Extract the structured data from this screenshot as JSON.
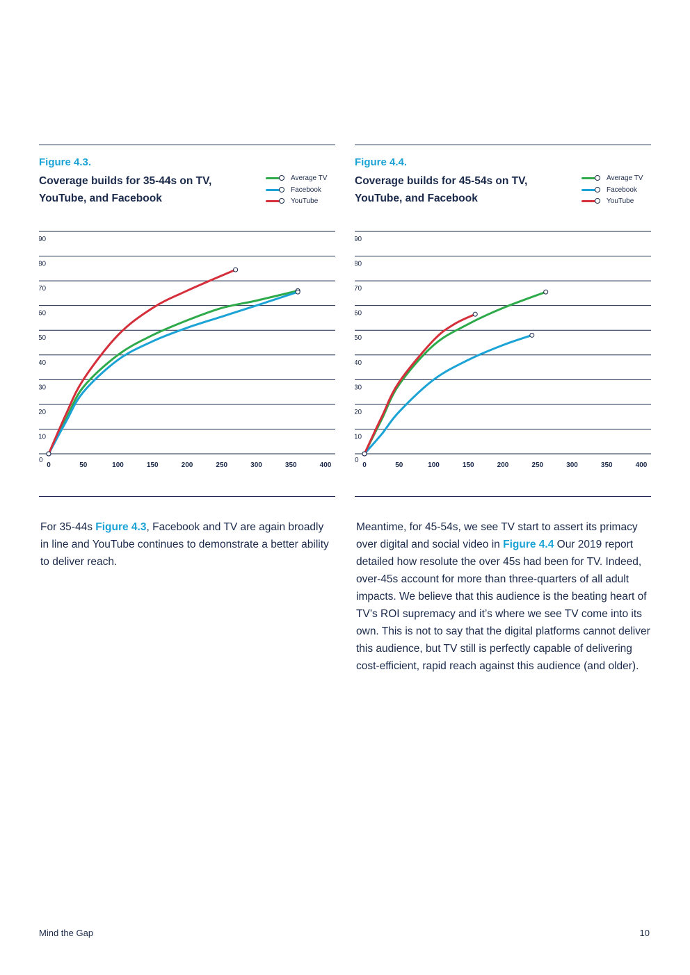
{
  "figures": [
    {
      "number": "Figure 4.3.",
      "title": "Coverage builds for 35-44s on TV, YouTube, and Facebook"
    },
    {
      "number": "Figure 4.4.",
      "title": "Coverage builds for 45-54s on TV, YouTube, and Facebook"
    }
  ],
  "colors": {
    "tv": "#2eaa4a",
    "facebook": "#1ba3d6",
    "youtube": "#d42f3a",
    "text": "#1b2a4a",
    "accent": "#1ba3d6"
  },
  "chart_data": [
    {
      "type": "line",
      "title": "Coverage builds for 35-44s on TV, YouTube, and Facebook",
      "xlabel": "",
      "ylabel": "",
      "xlim": [
        0,
        400
      ],
      "ylim": [
        0,
        90
      ],
      "xticks": [
        "0",
        "50",
        "100",
        "150",
        "200",
        "250",
        "300",
        "350",
        "400"
      ],
      "yticks": [
        "0",
        "10",
        "20",
        "30",
        "40",
        "50",
        "60",
        "70",
        "80",
        "90"
      ],
      "legend": [
        "Average TV",
        "Facebook",
        "YouTube"
      ],
      "legend_position": "top-right",
      "series": [
        {
          "name": "Average TV",
          "color": "#2eaa4a",
          "x": [
            0,
            25,
            50,
            100,
            150,
            200,
            250,
            300,
            360
          ],
          "y": [
            0,
            14,
            27,
            40,
            48,
            54,
            59,
            62,
            66
          ]
        },
        {
          "name": "Facebook",
          "color": "#1ba3d6",
          "x": [
            0,
            25,
            50,
            100,
            150,
            200,
            250,
            300,
            360
          ],
          "y": [
            0,
            13,
            25,
            38,
            45.5,
            51,
            55.5,
            60,
            65.5
          ]
        },
        {
          "name": "YouTube",
          "color": "#d42f3a",
          "x": [
            0,
            25,
            50,
            100,
            150,
            200,
            270
          ],
          "y": [
            0,
            16,
            30,
            48,
            59,
            66,
            74.5
          ]
        }
      ]
    },
    {
      "type": "line",
      "title": "Coverage builds for 45-54s on TV, YouTube, and Facebook",
      "xlabel": "",
      "ylabel": "",
      "xlim": [
        0,
        400
      ],
      "ylim": [
        0,
        90
      ],
      "xticks": [
        "0",
        "50",
        "100",
        "150",
        "200",
        "250",
        "300",
        "350",
        "400"
      ],
      "yticks": [
        "0",
        "10",
        "20",
        "30",
        "40",
        "50",
        "60",
        "70",
        "80",
        "90"
      ],
      "legend": [
        "Average TV",
        "Facebook",
        "YouTube"
      ],
      "legend_position": "top-right",
      "series": [
        {
          "name": "Average TV",
          "color": "#2eaa4a",
          "x": [
            0,
            25,
            50,
            100,
            150,
            200,
            262
          ],
          "y": [
            0,
            14,
            28,
            44,
            52.5,
            59,
            65.5
          ]
        },
        {
          "name": "Facebook",
          "color": "#1ba3d6",
          "x": [
            0,
            25,
            50,
            100,
            150,
            200,
            242
          ],
          "y": [
            0,
            8,
            17,
            30,
            38,
            44,
            48
          ]
        },
        {
          "name": "YouTube",
          "color": "#d42f3a",
          "x": [
            0,
            25,
            50,
            100,
            130,
            160
          ],
          "y": [
            0,
            15,
            29,
            46,
            52.5,
            56.5
          ]
        }
      ]
    }
  ],
  "body": {
    "left": {
      "before": "For 35-44s ",
      "ref": "Figure 4.3",
      "after": ", Facebook and TV are again broadly in line and YouTube continues to demonstrate a better ability to deliver reach."
    },
    "right": {
      "before": "Meantime, for 45-54s, we see TV start to assert its primacy over digital and social video in ",
      "ref": "Figure 4.4",
      "after": " Our 2019 report detailed how resolute the over 45s had been for TV. Indeed, over-45s account for more than three-quarters of all adult impacts. We believe that this audience is the beating heart of TV’s ROI supremacy and it’s where we see TV come into its own. This is not to say that the digital platforms cannot deliver this audience, but TV still is perfectly capable of delivering cost-efficient, rapid reach against this audience (and older)."
    }
  },
  "footer": {
    "title": "Mind the Gap",
    "page_number": "10"
  }
}
